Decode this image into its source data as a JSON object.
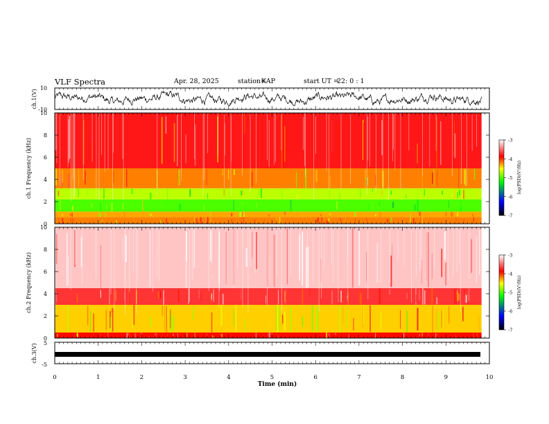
{
  "header": {
    "title": "VLF Spectra",
    "date": "Apr. 28, 2025",
    "station_label": "station=",
    "station_value": "KAP",
    "start_label": "start UT =",
    "start_value": "22: 0 : 1"
  },
  "chart_data": [
    {
      "type": "line",
      "id": "waveform-ch1",
      "ylabel": "ch.1(V)",
      "ylim": [
        -10,
        10
      ],
      "yticks": [
        "10",
        "-10"
      ],
      "xlim": [
        0,
        10
      ],
      "note": "noisy waveform roughly between -5 and 5 V over 0-9.8 min"
    },
    {
      "type": "heatmap",
      "id": "spectrogram-ch1",
      "ylabel": "ch.1 Frequency (kHz)",
      "ylim": [
        0,
        10
      ],
      "yticks": [
        "0",
        "2",
        "4",
        "6",
        "8",
        "10"
      ],
      "xlim": [
        0,
        9.82
      ],
      "colorbar": {
        "label": "log(PSD)(V²/Hz)",
        "range": [
          -7,
          -3
        ],
        "ticks": [
          "-3",
          "-4",
          "-5",
          "-6",
          "-7"
        ]
      },
      "bands": [
        {
          "from_khz": 0.0,
          "to_khz": 0.6,
          "level": -4.2
        },
        {
          "from_khz": 0.6,
          "to_khz": 1.1,
          "level": -4.3
        },
        {
          "from_khz": 1.1,
          "to_khz": 2.2,
          "level": -5.0
        },
        {
          "from_khz": 2.2,
          "to_khz": 3.2,
          "level": -4.7
        },
        {
          "from_khz": 3.2,
          "to_khz": 5.0,
          "level": -4.2
        },
        {
          "from_khz": 5.0,
          "to_khz": 10.0,
          "level": -3.8
        }
      ]
    },
    {
      "type": "heatmap",
      "id": "spectrogram-ch2",
      "ylabel": "ch.2 Frequency (kHz)",
      "ylim": [
        0,
        10
      ],
      "yticks": [
        "0",
        "2",
        "4",
        "6",
        "8",
        "10"
      ],
      "xlim": [
        0,
        9.82
      ],
      "colorbar": {
        "label": "log(PSD)(V²/Hz)",
        "range": [
          -7,
          -3
        ],
        "ticks": [
          "-3",
          "-4",
          "-5",
          "-6",
          "-7"
        ]
      },
      "bands": [
        {
          "from_khz": 0.0,
          "to_khz": 0.5,
          "level": -3.9
        },
        {
          "from_khz": 0.5,
          "to_khz": 3.0,
          "level": -4.4
        },
        {
          "from_khz": 3.0,
          "to_khz": 4.5,
          "level": -3.7
        },
        {
          "from_khz": 4.5,
          "to_khz": 10.0,
          "level": -3.2
        }
      ]
    },
    {
      "type": "line",
      "id": "waveform-ch3",
      "ylabel": "ch.3(V)",
      "ylim": [
        -5,
        5
      ],
      "yticks": [
        "5",
        "-5"
      ],
      "xlim": [
        0,
        10
      ],
      "note": "dense oscillation around -1.5 V, amplitude ~0.5 V"
    }
  ],
  "xaxis": {
    "label": "Time (min)",
    "ticks": [
      "0",
      "1",
      "2",
      "3",
      "4",
      "5",
      "6",
      "7",
      "8",
      "9",
      "10"
    ]
  },
  "colors": {
    "colormap": [
      "#000000",
      "#0000ff",
      "#00ff00",
      "#ffff00",
      "#ff0000",
      "#ffffff"
    ]
  }
}
